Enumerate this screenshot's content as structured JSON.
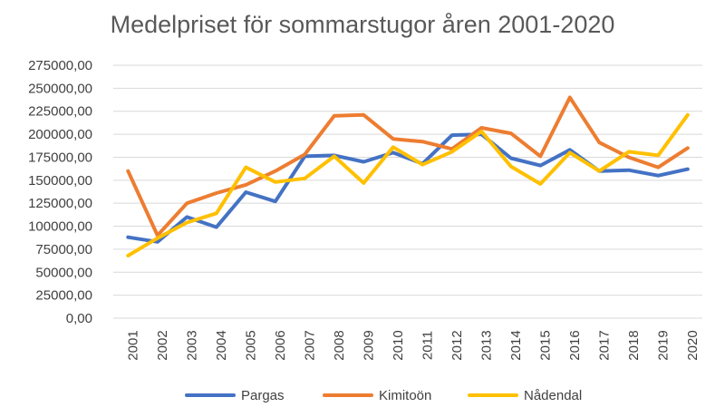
{
  "chart_data": {
    "type": "line",
    "title": "Medelpriset för sommarstugor åren 2001-2020",
    "xlabel": "",
    "ylabel": "",
    "categories": [
      "2001",
      "2002",
      "2003",
      "2004",
      "2005",
      "2006",
      "2007",
      "2008",
      "2009",
      "2010",
      "2011",
      "2012",
      "2013",
      "2014",
      "2015",
      "2016",
      "2017",
      "2018",
      "2019",
      "2020"
    ],
    "ylim": [
      0,
      275000
    ],
    "y_ticks": [
      "0,00",
      "25000,00",
      "50000,00",
      "75000,00",
      "100000,00",
      "125000,00",
      "150000,00",
      "175000,00",
      "200000,00",
      "225000,00",
      "250000,00",
      "275000,00"
    ],
    "grid": true,
    "legend_position": "bottom",
    "series": [
      {
        "name": "Pargas",
        "color": "#4472c4",
        "values": [
          88000,
          83000,
          110000,
          99000,
          137000,
          127000,
          176000,
          177000,
          170000,
          180000,
          168000,
          199000,
          200000,
          174000,
          166000,
          183000,
          160000,
          161000,
          155000,
          162000
        ]
      },
      {
        "name": "Kimitoön",
        "color": "#ed7d31",
        "values": [
          160000,
          90000,
          125000,
          136000,
          145000,
          160000,
          178000,
          220000,
          221000,
          195000,
          192000,
          184000,
          207000,
          201000,
          176000,
          240000,
          191000,
          175000,
          164000,
          185000
        ]
      },
      {
        "name": "Nådendal",
        "color": "#ffc000",
        "values": [
          68000,
          87000,
          104000,
          114000,
          164000,
          148000,
          152000,
          176000,
          147000,
          186000,
          167000,
          181000,
          203000,
          165000,
          146000,
          180000,
          160000,
          181000,
          177000,
          221000
        ]
      }
    ]
  }
}
